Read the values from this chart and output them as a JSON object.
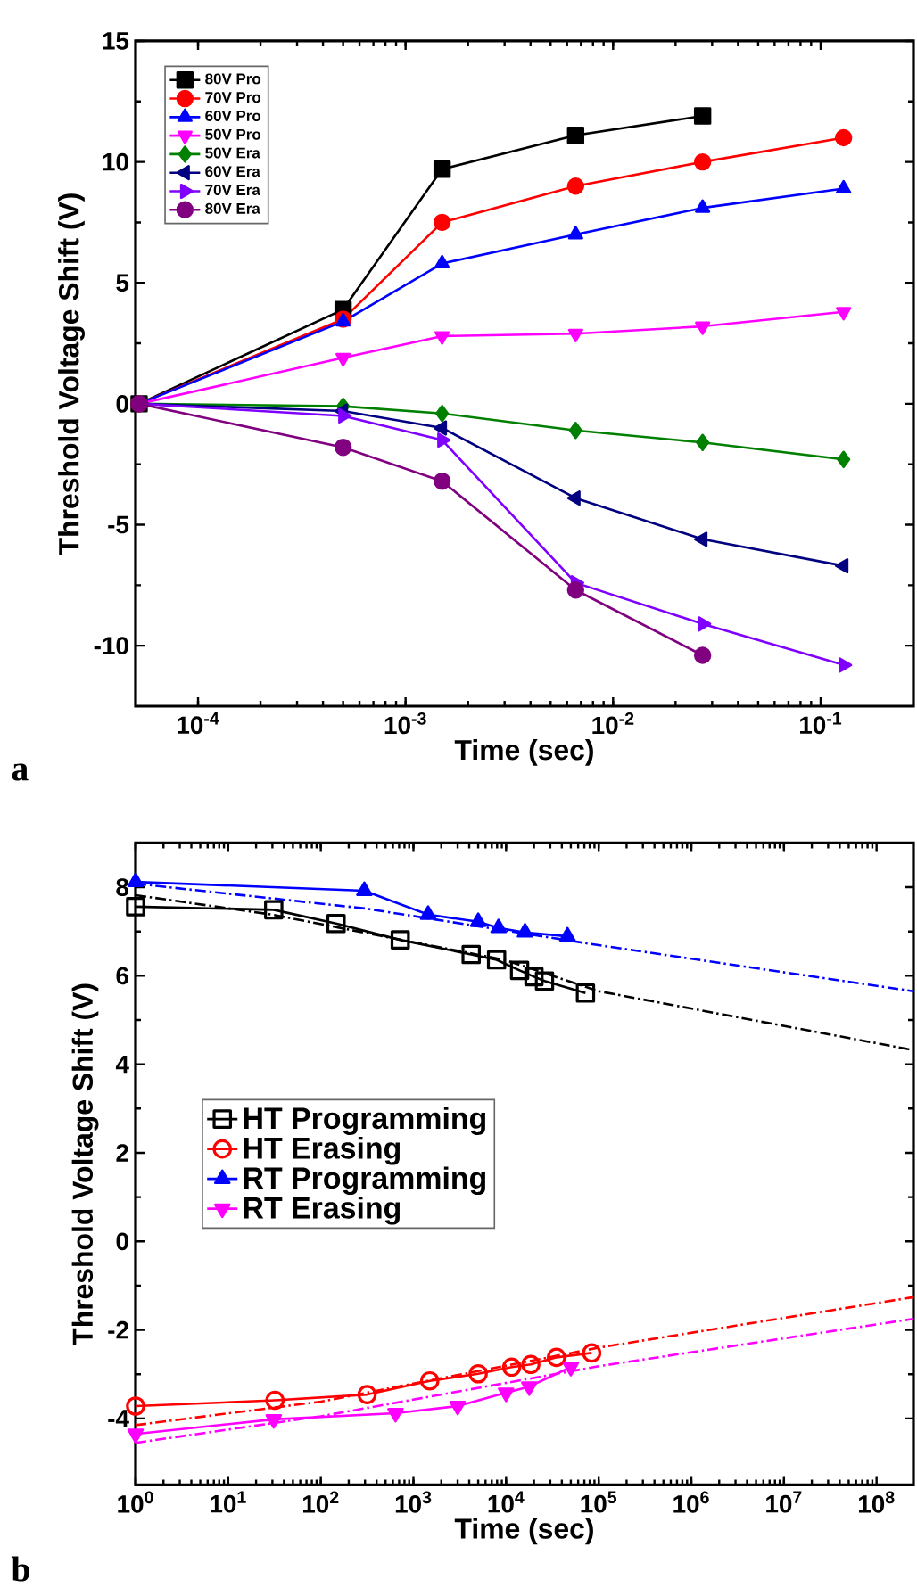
{
  "chart_data": [
    {
      "type": "line",
      "xlabel": "Time (sec)",
      "ylabel": "Threshold Voltage Shift (V)",
      "log": "x",
      "xlim": [
        5e-05,
        0.28
      ],
      "ylim": [
        -12.5,
        15
      ],
      "xticks": [
        {
          "value": 0.0001,
          "label": "10$^{-4}$"
        },
        {
          "value": 0.001,
          "label": "10$^{-3}$"
        },
        {
          "value": 0.01,
          "label": "10$^{-2}$"
        },
        {
          "value": 0.1,
          "label": "10$^{-1}$"
        }
      ],
      "yticks": [
        -10,
        -5,
        0,
        5,
        10,
        15
      ],
      "legend": "top left",
      "annotations": [
        "a"
      ],
      "x": [
        5.2e-05,
        0.0005,
        0.0015,
        0.0066,
        0.027,
        0.129
      ],
      "series": [
        {
          "name": "80V Pro",
          "color": "#000000",
          "marker": "square",
          "values": [
            0,
            3.9,
            9.7,
            11.1,
            11.9,
            null
          ]
        },
        {
          "name": "70V Pro",
          "color": "#ff0000",
          "marker": "circle",
          "values": [
            0,
            3.5,
            7.5,
            9.0,
            10.0,
            11.0
          ]
        },
        {
          "name": "60V Pro",
          "color": "#0000ff",
          "marker": "triangle",
          "values": [
            0,
            3.4,
            5.8,
            7.0,
            8.1,
            8.9
          ]
        },
        {
          "name": "50V Pro",
          "color": "#ff00ff",
          "marker": "triangle-down",
          "values": [
            0,
            1.9,
            2.8,
            2.9,
            3.2,
            3.8
          ]
        },
        {
          "name": "50V Era",
          "color": "#008000",
          "marker": "diamond",
          "values": [
            0,
            -0.1,
            -0.4,
            -1.1,
            -1.6,
            -2.3
          ]
        },
        {
          "name": "60V Era",
          "color": "#000080",
          "marker": "triangle-left",
          "values": [
            0,
            -0.3,
            -1.0,
            -3.9,
            -5.6,
            -6.7
          ]
        },
        {
          "name": "70V Era",
          "color": "#8000ff",
          "marker": "triangle-right",
          "values": [
            0,
            -0.5,
            -1.5,
            -7.4,
            -9.1,
            -10.8
          ]
        },
        {
          "name": "80V Era",
          "color": "#800080",
          "marker": "circle",
          "values": [
            0,
            -1.8,
            -3.2,
            -7.7,
            -10.4,
            null
          ]
        }
      ]
    },
    {
      "type": "line",
      "xlabel": "Time (sec)",
      "ylabel": "Threshold Voltage Shift (V)",
      "log": "x",
      "xlim": [
        1,
        250000000
      ],
      "ylim": [
        -5.5,
        9
      ],
      "xticks": [
        {
          "value": 1,
          "label": "10$^{0}$"
        },
        {
          "value": 10,
          "label": "10$^{1}$"
        },
        {
          "value": 100,
          "label": "10$^{2}$"
        },
        {
          "value": 1000,
          "label": "10$^{3}$"
        },
        {
          "value": 10000,
          "label": "10$^{4}$"
        },
        {
          "value": 100000,
          "label": "10$^{5}$"
        },
        {
          "value": 1000000,
          "label": "10$^{6}$"
        },
        {
          "value": 10000000,
          "label": "10$^{7}$"
        },
        {
          "value": 100000000,
          "label": "10$^{8}$"
        }
      ],
      "yticks": [
        -4,
        -2,
        0,
        2,
        4,
        6,
        8
      ],
      "legend": "left",
      "annotations": [
        "b"
      ],
      "series": [
        {
          "name": "HT Programming",
          "color": "#000000",
          "marker": "square",
          "x": [
            1,
            31,
            146,
            720,
            4200,
            7900,
            14000,
            20000,
            26000,
            72000
          ],
          "values": [
            7.56,
            7.49,
            7.18,
            6.81,
            6.48,
            6.36,
            6.12,
            5.98,
            5.88,
            5.61
          ]
        },
        {
          "name": "HT Erasing",
          "color": "#ff0000",
          "marker": "circle",
          "x": [
            1,
            32,
            316,
            1500,
            5000,
            11500,
            18500,
            35000,
            84000
          ],
          "values": [
            -3.72,
            -3.59,
            -3.46,
            -3.15,
            -2.99,
            -2.84,
            -2.78,
            -2.62,
            -2.52
          ]
        },
        {
          "name": "RT Programming",
          "color": "#0000ff",
          "marker": "triangle",
          "x": [
            1,
            295,
            1440,
            5000,
            8300,
            16000,
            46000
          ],
          "values": [
            8.12,
            7.92,
            7.38,
            7.22,
            7.08,
            6.98,
            6.89
          ]
        },
        {
          "name": "RT Erasing",
          "color": "#ff00ff",
          "marker": "triangle-down",
          "x": [
            1,
            31,
            640,
            3000,
            10000,
            17800,
            50000
          ],
          "values": [
            -4.35,
            -4.02,
            -3.88,
            -3.72,
            -3.42,
            -3.28,
            -2.84
          ]
        },
        {
          "type": "line",
          "color": "#000000",
          "marker": "none",
          "line_style": "dashed",
          "x": [
            1,
            30,
            10000,
            100000,
            250000000
          ],
          "values": [
            7.82,
            7.38,
            6.35,
            5.65,
            4.32
          ]
        },
        {
          "type": "line",
          "color": "#0000ff",
          "marker": "none",
          "line_style": "dashed",
          "x": [
            1,
            300,
            100000,
            250000000
          ],
          "values": [
            8.08,
            7.52,
            6.69,
            5.65
          ]
        },
        {
          "type": "line",
          "color": "#ff0000",
          "marker": "none",
          "line_style": "dashed",
          "x": [
            1,
            100,
            100000,
            250000000
          ],
          "values": [
            -4.15,
            -3.62,
            -2.4,
            -1.26
          ]
        },
        {
          "type": "line",
          "color": "#ff00ff",
          "marker": "none",
          "line_style": "dashed",
          "x": [
            1,
            100,
            100000,
            250000000
          ],
          "values": [
            -4.55,
            -3.95,
            -2.82,
            -1.75
          ]
        }
      ]
    }
  ]
}
